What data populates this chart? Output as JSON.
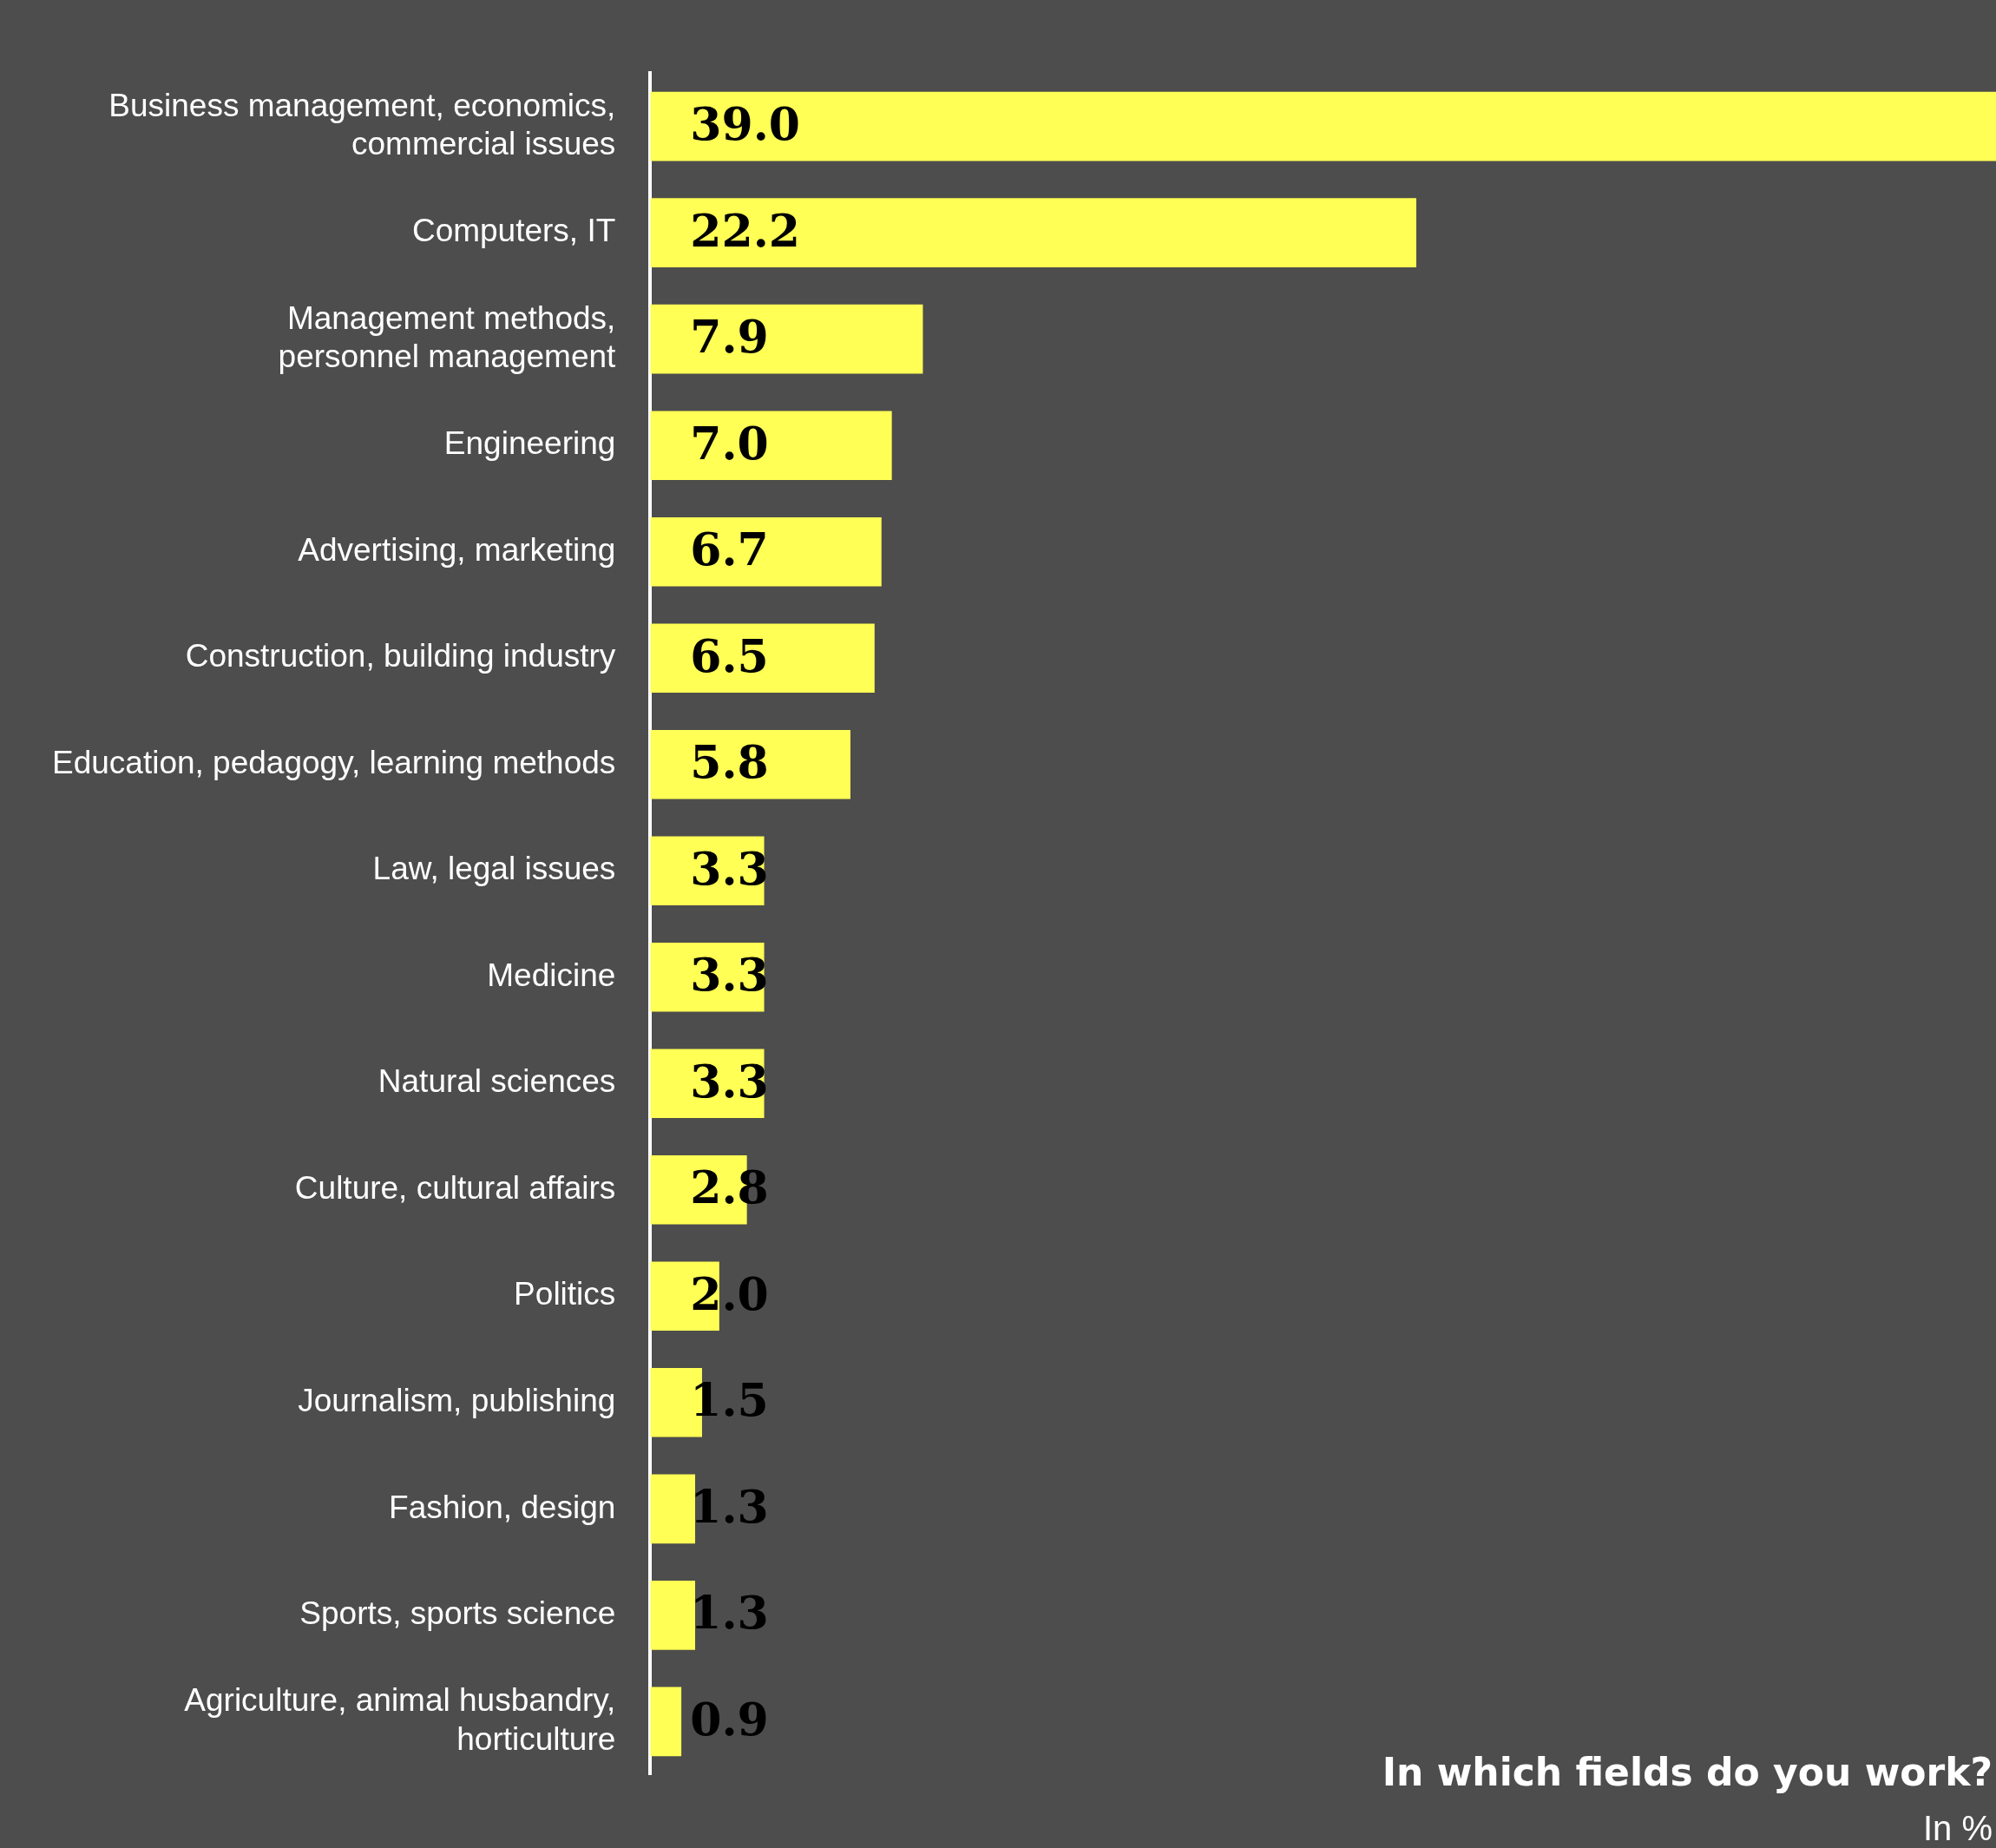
{
  "chart_data": {
    "type": "bar",
    "orientation": "horizontal",
    "title": "In which fields do you work?",
    "subtitle": "In %",
    "categories": [
      "Business management, economics, commercial issues",
      "Computers, IT",
      "Management methods, personnel management",
      "Engineering",
      "Advertising, marketing",
      "Construction, building industry",
      "Education, pedagogy, learning methods",
      "Law, legal issues",
      "Medicine",
      "Natural sciences",
      "Culture, cultural affairs",
      "Politics",
      "Journalism, publishing",
      "Fashion, design",
      "Sports, sports science",
      "Agriculture, animal husbandry, horticulture"
    ],
    "values": [
      39.0,
      22.2,
      7.9,
      7.0,
      6.7,
      6.5,
      5.8,
      3.3,
      3.3,
      3.3,
      2.8,
      2.0,
      1.5,
      1.3,
      1.3,
      0.9
    ],
    "value_labels": [
      "39.0",
      "22.2",
      "7.9",
      "7.0",
      "6.7",
      "6.5",
      "5.8",
      "3.3",
      "3.3",
      "3.3",
      "2.8",
      "2.0",
      "1.5",
      "1.3",
      "1.3",
      "0.9"
    ],
    "color": "#ffff55",
    "xlim": [
      0,
      39
    ],
    "legend": false,
    "tick_labels": "y"
  }
}
